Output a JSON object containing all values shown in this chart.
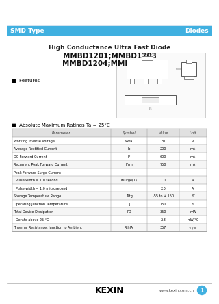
{
  "header_bg": "#40b0e0",
  "header_text_left": "SMD Type",
  "header_text_right": "Diodes",
  "title1": "High Conductance Ultra Fast Diode",
  "title2": "MMBD1201;MMBD1203",
  "title3": "MMBD1204;MMBD1205",
  "features_label": "■  Features",
  "abs_max_label": "■  Absolute Maximum Ratings Ta = 25°C",
  "table_headers": [
    "Parameter",
    "Symbol",
    "Value",
    "Unit"
  ],
  "table_rows": [
    [
      "Working Inverse Voltage",
      "WVR",
      "50",
      "V"
    ],
    [
      "Average Rectified Current",
      "Io",
      "200",
      "mA"
    ],
    [
      "DC Forward Current",
      "IF",
      "600",
      "mA"
    ],
    [
      "Recurrent Peak Forward Current",
      "IFrm",
      "750",
      "mA"
    ],
    [
      "Peak Forward Surge Current",
      "",
      "",
      ""
    ],
    [
      "  Pulse width = 1.0 second",
      "Ifsurge(1)",
      "1.0",
      "A"
    ],
    [
      "  Pulse width = 1.0 microsecond",
      "",
      "2.0",
      "A"
    ],
    [
      "Storage Temperature Range",
      "Tstg",
      "-55 to + 150",
      "°C"
    ],
    [
      "Operating Junction Temperature",
      "TJ",
      "150",
      "°C"
    ],
    [
      "Total Device Dissipation",
      "PD",
      "350",
      "mW"
    ],
    [
      "  Derate above 25 °C",
      "",
      "2.8",
      "mW/°C"
    ],
    [
      "Thermal Resistance, Junction to Ambient",
      "RthJA",
      "357",
      "°C/W"
    ]
  ],
  "footer_logo": "KEXIN",
  "footer_url": "www.kexin.com.cn",
  "footer_page": "1",
  "bg_color": "#ffffff",
  "table_border": "#999999",
  "page_bg": "#f0f0f0"
}
